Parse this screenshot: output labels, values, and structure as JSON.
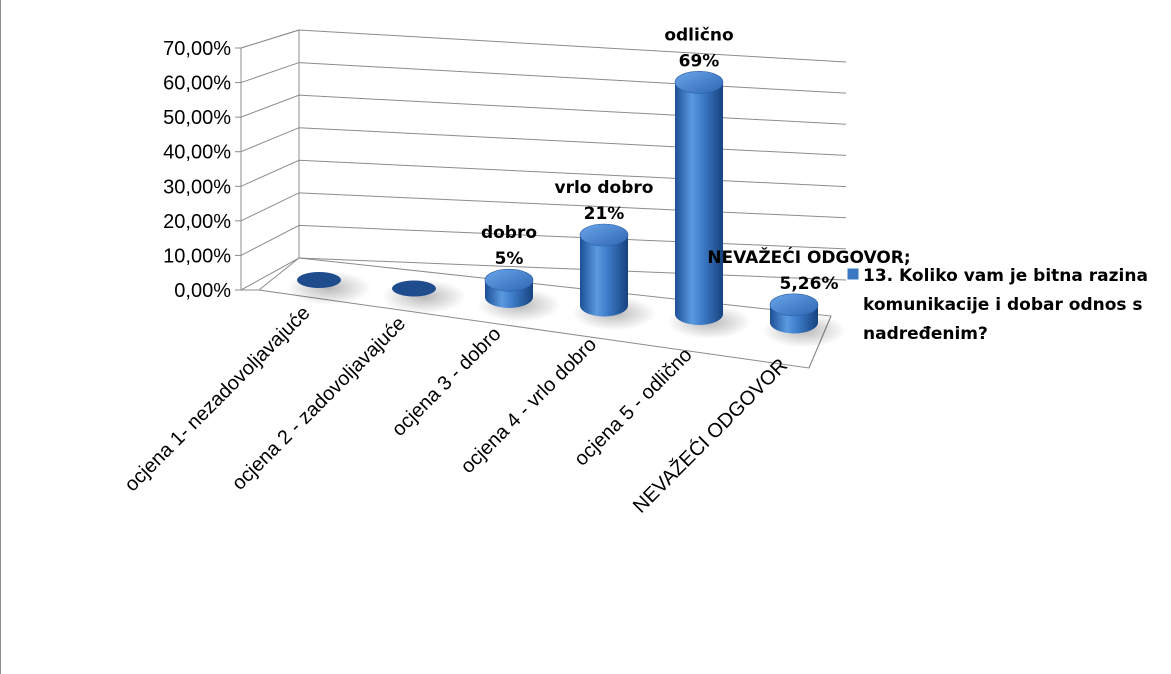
{
  "chart_data": {
    "type": "bar",
    "style": "3d-cylinder",
    "categories": [
      "ocjena 1- nezadovoljavajuće",
      "ocjena 2 - zadovoljavajuće",
      "ocjena 3 - dobro",
      "ocjena 4 - vrlo dobro",
      "ocjena 5 - odlično",
      "NEVAŽEĆI ODGOVOR"
    ],
    "series": [
      {
        "name": "13. Koliko vam je bitna razina komunikacije i dobar odnos s nadređenim?",
        "name_lines": [
          "13. Koliko vam je bitna razina",
          "komunikacije i dobar odnos s",
          "nadređenim?"
        ],
        "values": [
          0.0,
          0.0,
          5.0,
          21.0,
          69.0,
          5.26
        ],
        "color": "#3a78c4"
      }
    ],
    "data_labels": [
      null,
      null,
      {
        "line1": "dobro",
        "line2": "5%"
      },
      {
        "line1": "vrlo dobro",
        "line2": "21%"
      },
      {
        "line1": "odlično",
        "line2": "69%"
      },
      {
        "line1": "NEVAŽEĆI ODGOVOR;",
        "line2": "5,26%"
      }
    ],
    "y_ticks": [
      "0,00%",
      "10,00%",
      "20,00%",
      "30,00%",
      "40,00%",
      "50,00%",
      "60,00%",
      "70,00%"
    ],
    "ylim": [
      0,
      70
    ],
    "grid": true,
    "legend_position": "right",
    "title": "",
    "xlabel": "",
    "ylabel": ""
  }
}
